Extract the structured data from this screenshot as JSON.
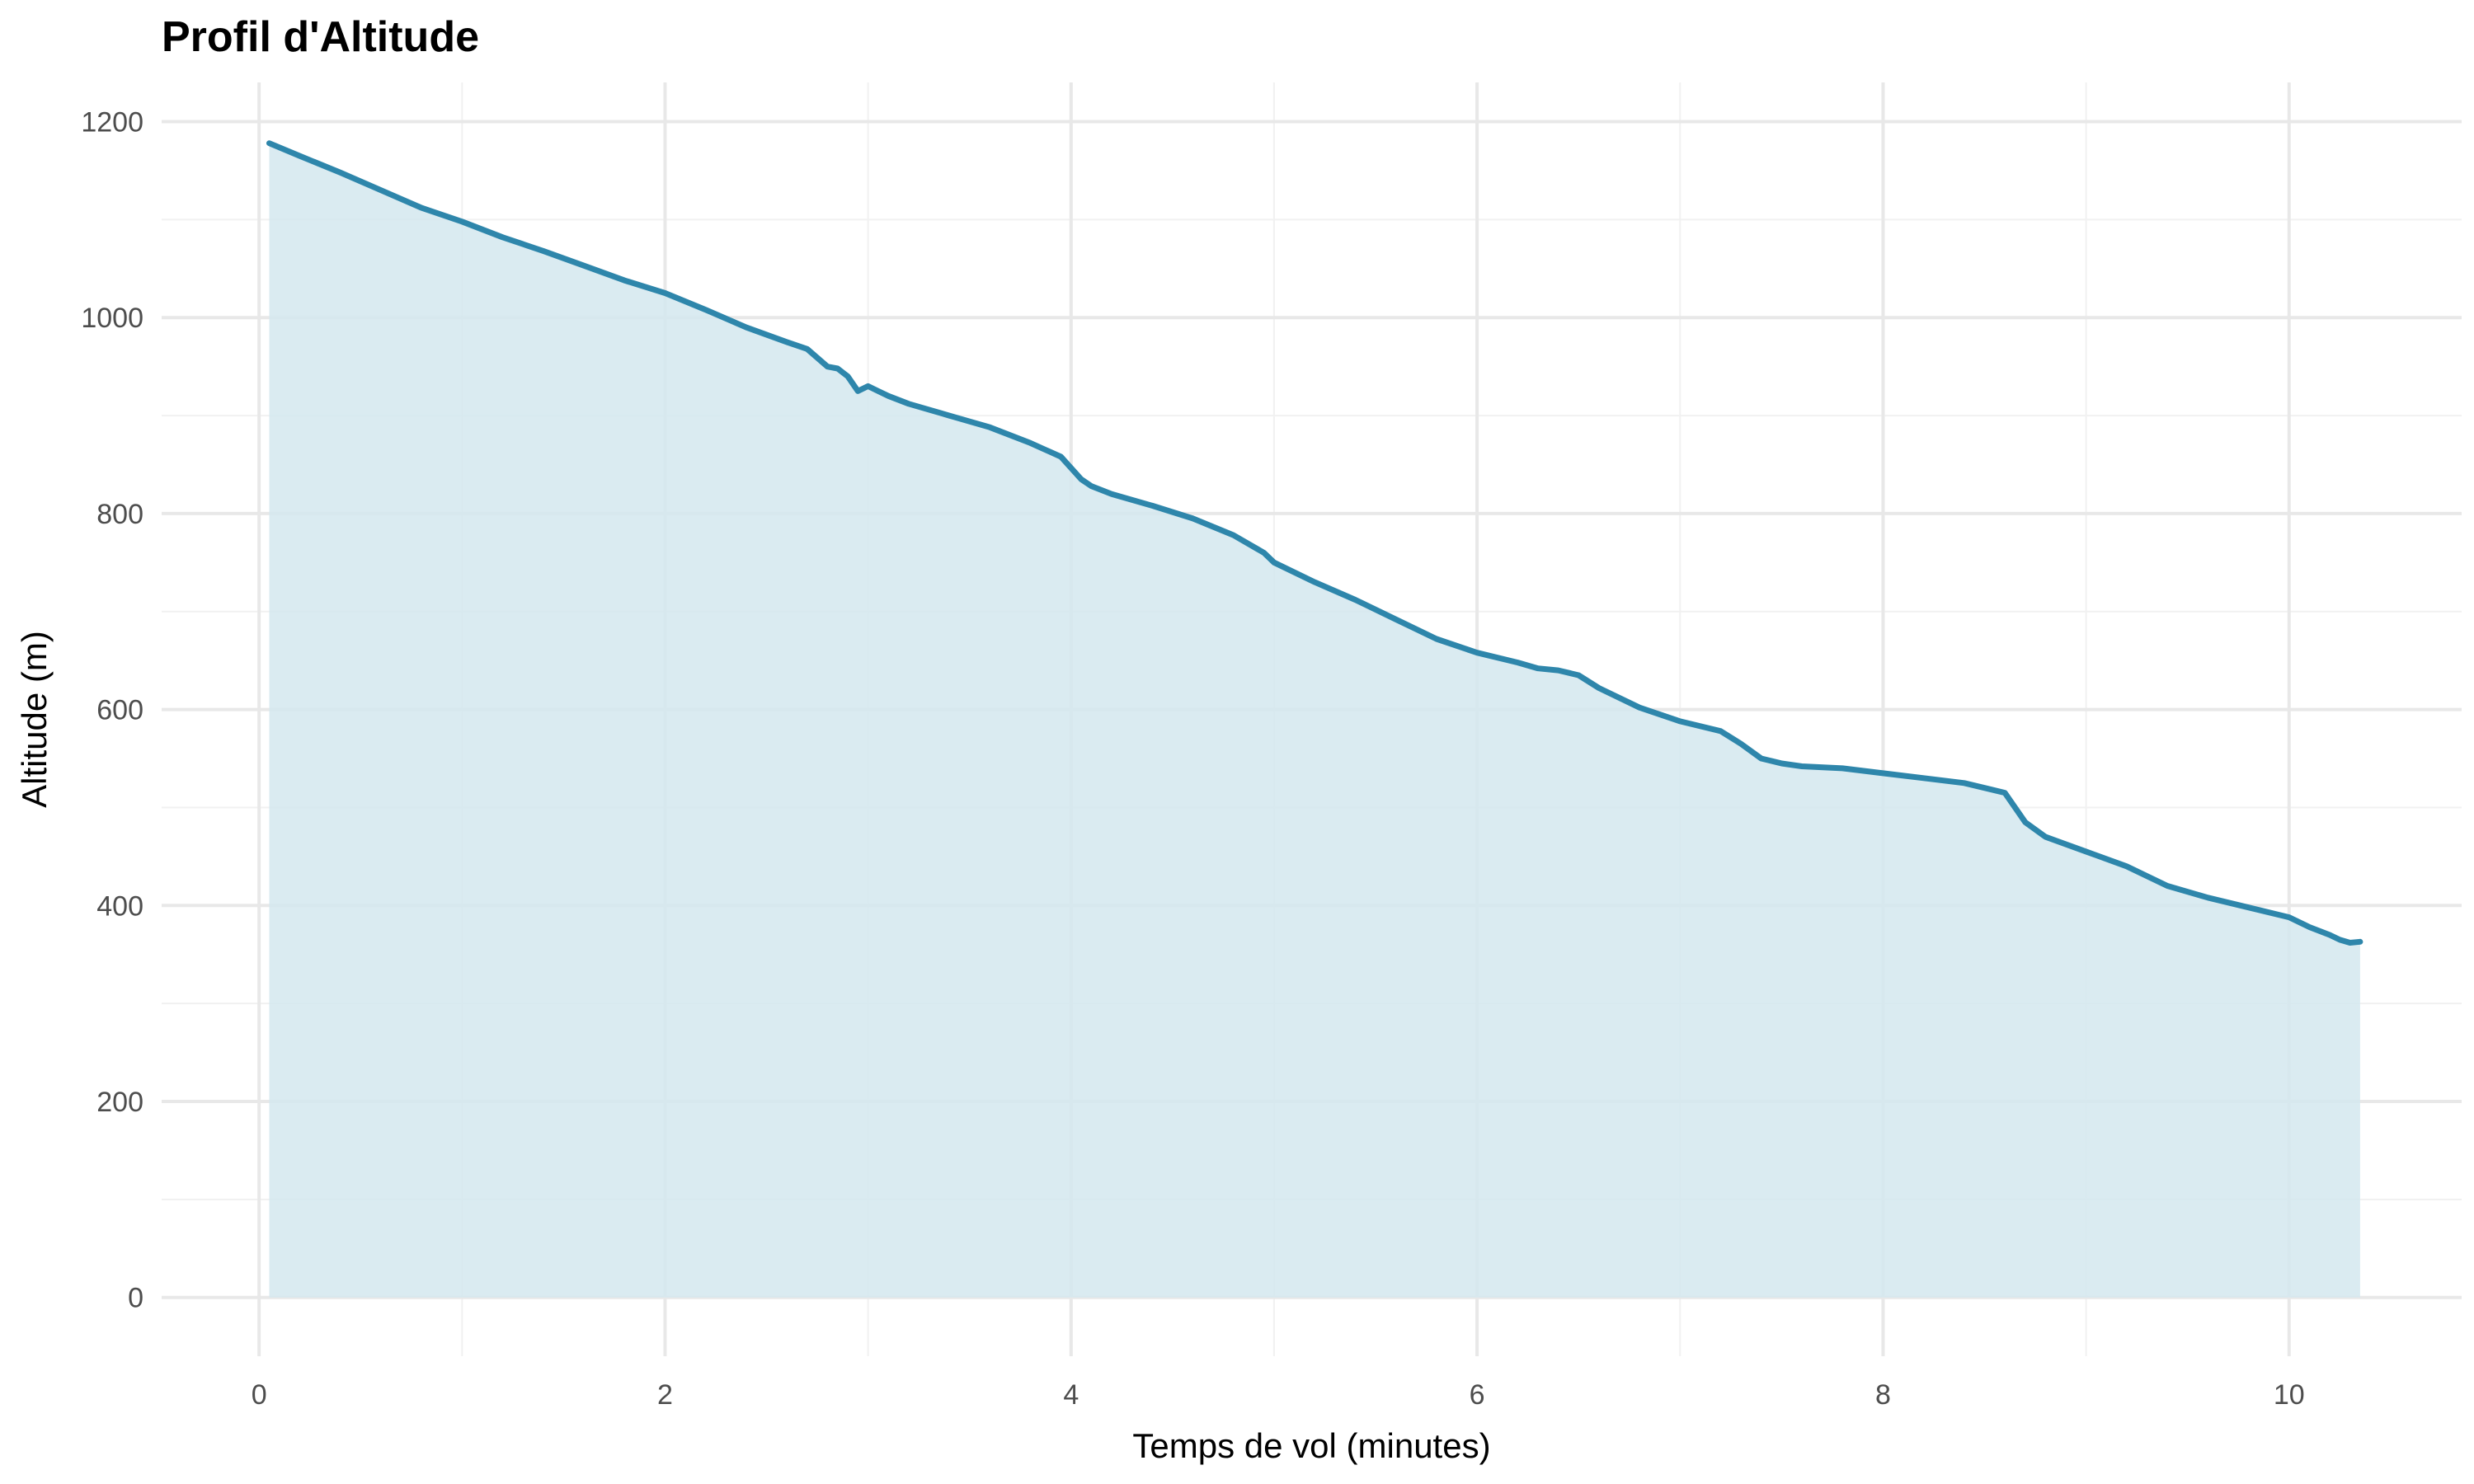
{
  "chart_data": {
    "type": "area",
    "title": "Profil d'Altitude",
    "xlabel": "Temps de vol (minutes)",
    "ylabel": "Altitude (m)",
    "xlim": [
      -0.48,
      10.85
    ],
    "ylim": [
      -60,
      1240
    ],
    "x_ticks": [
      0,
      2,
      4,
      6,
      8,
      10
    ],
    "x_minor_ticks": [
      1,
      3,
      5,
      7,
      9
    ],
    "y_ticks": [
      0,
      200,
      400,
      600,
      800,
      1000,
      1200
    ],
    "y_minor_ticks": [
      100,
      300,
      500,
      700,
      900,
      1100
    ],
    "x_tick_labels": [
      "0",
      "2",
      "4",
      "6",
      "8",
      "10"
    ],
    "y_tick_labels": [
      "0",
      "200",
      "400",
      "600",
      "800",
      "1000",
      "1200"
    ],
    "grid": true,
    "line_color": "#2E86AB",
    "fill_color": "#D4E7EF",
    "series": [
      {
        "x": [
          0.05,
          0.2,
          0.4,
          0.6,
          0.8,
          1.0,
          1.2,
          1.4,
          1.6,
          1.8,
          2.0,
          2.2,
          2.4,
          2.6,
          2.7,
          2.8,
          2.85,
          2.9,
          2.95,
          3.0,
          3.05,
          3.1,
          3.2,
          3.4,
          3.6,
          3.8,
          3.95,
          4.05,
          4.1,
          4.2,
          4.4,
          4.6,
          4.8,
          4.95,
          5.0,
          5.2,
          5.4,
          5.6,
          5.8,
          6.0,
          6.2,
          6.3,
          6.4,
          6.5,
          6.6,
          6.8,
          7.0,
          7.2,
          7.3,
          7.4,
          7.5,
          7.6,
          7.8,
          8.0,
          8.2,
          8.4,
          8.6,
          8.7,
          8.8,
          9.0,
          9.2,
          9.4,
          9.6,
          9.8,
          10.0,
          10.1,
          10.2,
          10.25,
          10.3,
          10.35
        ],
        "y": [
          1178,
          1165,
          1148,
          1130,
          1112,
          1098,
          1082,
          1068,
          1053,
          1038,
          1025,
          1008,
          990,
          975,
          968,
          950,
          948,
          940,
          925,
          930,
          925,
          920,
          912,
          900,
          888,
          872,
          858,
          835,
          828,
          820,
          808,
          795,
          778,
          760,
          750,
          730,
          712,
          692,
          672,
          658,
          648,
          642,
          640,
          635,
          622,
          602,
          588,
          578,
          565,
          550,
          545,
          542,
          540,
          535,
          530,
          525,
          515,
          485,
          470,
          455,
          440,
          420,
          408,
          398,
          388,
          378,
          370,
          365,
          362,
          363
        ]
      }
    ]
  }
}
